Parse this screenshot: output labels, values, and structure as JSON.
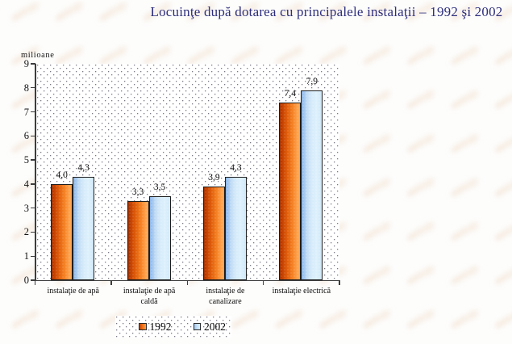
{
  "title": {
    "text": "Locuinţe după dotarea cu principalele instalaţii – 1992 şi 2002",
    "color": "#2e2e7d"
  },
  "chart_data": {
    "type": "bar",
    "title": "Locuinţe după dotarea cu principalele instalaţii – 1992 şi 2002",
    "ylabel": "milioane",
    "xlabel": "",
    "ylim": [
      0,
      9
    ],
    "yticks": [
      "0",
      "1",
      "2",
      "3",
      "4",
      "5",
      "6",
      "7",
      "8",
      "9"
    ],
    "grid": false,
    "legend_position": "bottom",
    "categories": [
      "instalaţie de apă",
      "instalaţie de apă caldă",
      "instalaţie de canalizare",
      "instalaţie electrică"
    ],
    "category_lines": [
      [
        "instalaţie de apă"
      ],
      [
        "instalaţie de apă",
        "caldă"
      ],
      [
        "instalaţie de",
        "canalizare"
      ],
      [
        "instalaţie electrică"
      ]
    ],
    "series": [
      {
        "name": "1992",
        "values": [
          4.0,
          3.3,
          3.9,
          7.4
        ],
        "labels": [
          "4,0",
          "3,3",
          "3,9",
          "7,4"
        ],
        "color_dark": "#c64201",
        "color_light": "#ff9f49"
      },
      {
        "name": "2002",
        "values": [
          4.3,
          3.5,
          4.3,
          7.9
        ],
        "labels": [
          "4,3",
          "3,5",
          "4,3",
          "7,9"
        ],
        "color_dark": "#9cc2ec",
        "color_light": "#d8eefb"
      }
    ]
  },
  "legend": {
    "items": [
      {
        "label": "1992"
      },
      {
        "label": "2002"
      }
    ]
  },
  "colors": {
    "title": "#2e2e7d",
    "axis": "#3d3d3d",
    "text": "#0d0d0d",
    "plot_dot": "#6c6c7c",
    "background": "#fdfdfc",
    "watermark": "#f1e3d4"
  }
}
